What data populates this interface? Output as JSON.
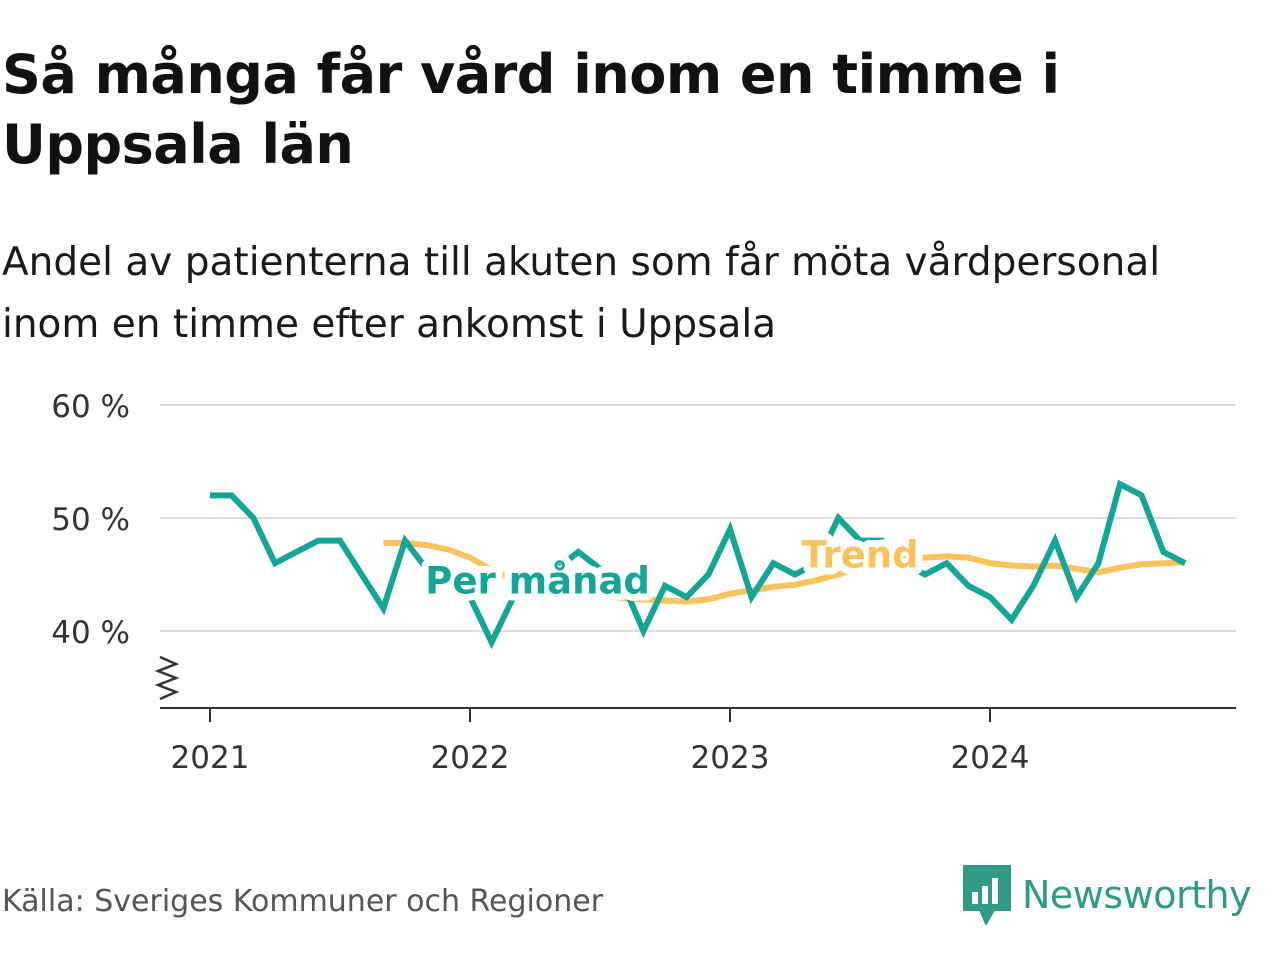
{
  "title": "Så många får vård inom en timme i Uppsala län",
  "subtitle": "Andel av patienterna till akuten som får möta vårdpersonal inom en timme efter ankomst i Uppsala",
  "source": "Källa: Sveriges Kommuner och Regioner",
  "brand": "Newsworthy",
  "colors": {
    "monthly": "#13a595",
    "trend": "#fcc35c",
    "grid": "#dddddd",
    "axis": "#333333",
    "brand": "#2f9a85"
  },
  "chart_data": {
    "type": "line",
    "y_ticks": [
      {
        "value": 40,
        "label": "40 %"
      },
      {
        "value": 50,
        "label": "50 %"
      },
      {
        "value": 60,
        "label": "60 %"
      }
    ],
    "x_ticks": [
      {
        "value": 2021,
        "label": "2021"
      },
      {
        "value": 2022,
        "label": "2022"
      },
      {
        "value": 2023,
        "label": "2023"
      },
      {
        "value": 2024,
        "label": "2024"
      }
    ],
    "ylim": [
      33.5,
      60
    ],
    "xlim": [
      2020.82,
      2024.95
    ],
    "y_axis_break": true,
    "grid": true,
    "series": [
      {
        "name": "Per månad",
        "key": "monthly",
        "points": [
          [
            2021.0,
            52
          ],
          [
            2021.083,
            52
          ],
          [
            2021.167,
            50
          ],
          [
            2021.25,
            46
          ],
          [
            2021.333,
            47
          ],
          [
            2021.417,
            48
          ],
          [
            2021.5,
            48
          ],
          [
            2021.583,
            45
          ],
          [
            2021.667,
            42
          ],
          [
            2021.75,
            48
          ],
          [
            2021.833,
            45.5
          ],
          [
            2021.917,
            45
          ],
          [
            2022.0,
            43
          ],
          [
            2022.083,
            39
          ],
          [
            2022.167,
            43
          ],
          [
            2022.25,
            44
          ],
          [
            2022.333,
            45.5
          ],
          [
            2022.417,
            47
          ],
          [
            2022.5,
            45.5
          ],
          [
            2022.583,
            44.5
          ],
          [
            2022.667,
            40
          ],
          [
            2022.75,
            44
          ],
          [
            2022.833,
            43
          ],
          [
            2022.917,
            45
          ],
          [
            2023.0,
            49
          ],
          [
            2023.083,
            43
          ],
          [
            2023.167,
            46
          ],
          [
            2023.25,
            45
          ],
          [
            2023.333,
            46
          ],
          [
            2023.417,
            50
          ],
          [
            2023.5,
            48
          ],
          [
            2023.583,
            48
          ],
          [
            2023.667,
            46
          ],
          [
            2023.75,
            45
          ],
          [
            2023.833,
            46
          ],
          [
            2023.917,
            44
          ],
          [
            2024.0,
            43
          ],
          [
            2024.083,
            41
          ],
          [
            2024.167,
            44
          ],
          [
            2024.25,
            48
          ],
          [
            2024.333,
            43
          ],
          [
            2024.417,
            46
          ],
          [
            2024.5,
            53
          ],
          [
            2024.583,
            52
          ],
          [
            2024.667,
            47
          ],
          [
            2024.75,
            46
          ]
        ]
      },
      {
        "name": "Trend",
        "key": "trend",
        "points": [
          [
            2021.667,
            47.8
          ],
          [
            2021.75,
            47.8
          ],
          [
            2021.833,
            47.6
          ],
          [
            2021.917,
            47.2
          ],
          [
            2022.0,
            46.5
          ],
          [
            2022.083,
            45.4
          ],
          [
            2022.167,
            44.6
          ],
          [
            2022.25,
            43.9
          ],
          [
            2022.333,
            43.4
          ],
          [
            2022.417,
            43.2
          ],
          [
            2022.5,
            43.1
          ],
          [
            2022.583,
            42.9
          ],
          [
            2022.667,
            42.8
          ],
          [
            2022.75,
            42.7
          ],
          [
            2022.833,
            42.6
          ],
          [
            2022.917,
            42.8
          ],
          [
            2023.0,
            43.3
          ],
          [
            2023.083,
            43.6
          ],
          [
            2023.167,
            43.9
          ],
          [
            2023.25,
            44.1
          ],
          [
            2023.333,
            44.5
          ],
          [
            2023.417,
            45.0
          ],
          [
            2023.5,
            45.6
          ],
          [
            2023.583,
            46.1
          ],
          [
            2023.667,
            46.4
          ],
          [
            2023.75,
            46.5
          ],
          [
            2023.833,
            46.6
          ],
          [
            2023.917,
            46.5
          ],
          [
            2024.0,
            46.0
          ],
          [
            2024.083,
            45.8
          ],
          [
            2024.167,
            45.7
          ],
          [
            2024.25,
            45.8
          ],
          [
            2024.333,
            45.5
          ],
          [
            2024.417,
            45.2
          ],
          [
            2024.5,
            45.6
          ],
          [
            2024.583,
            45.9
          ],
          [
            2024.667,
            46.0
          ],
          [
            2024.75,
            46.1
          ]
        ]
      }
    ],
    "annotations": [
      {
        "text": "Per månad",
        "series": "monthly",
        "x": 2022.26,
        "y": 43.3
      },
      {
        "text": "Trend",
        "series": "trend",
        "x": 2023.5,
        "y": 45.6
      }
    ]
  }
}
